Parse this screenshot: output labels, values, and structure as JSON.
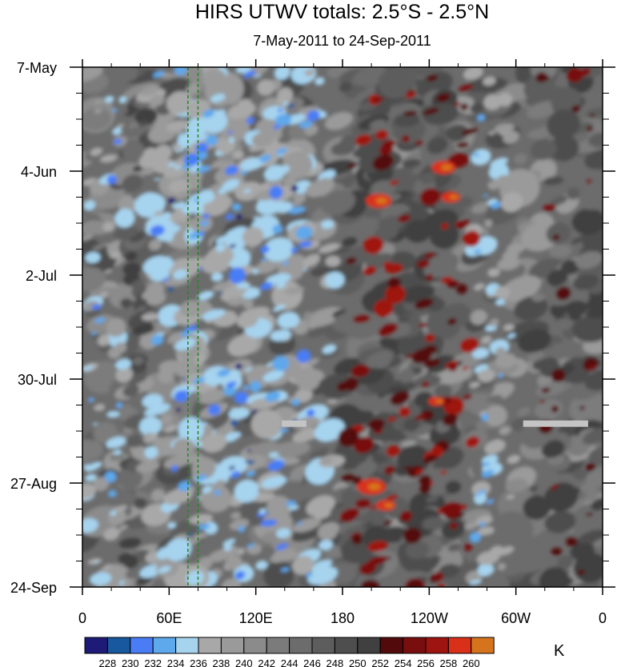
{
  "chart_data": {
    "type": "heatmap",
    "title": "HIRS UTWV totals: 2.5°S - 2.5°N",
    "subtitle": "7-May-2011 to 24-Sep-2011",
    "unit": "K",
    "x_ticks": [
      "0",
      "60E",
      "120E",
      "180",
      "120W",
      "60W",
      "0"
    ],
    "x_tick_lon": [
      0,
      60,
      120,
      180,
      240,
      300,
      360
    ],
    "y_ticks": [
      "7-May",
      "4-Jun",
      "2-Jul",
      "30-Jul",
      "27-Aug",
      "24-Sep"
    ],
    "y_tick_day": [
      0,
      28,
      56,
      84,
      112,
      140
    ],
    "xlim": [
      0,
      360
    ],
    "ylim_days": [
      0,
      140
    ],
    "colorbar_levels": [
      "228",
      "230",
      "232",
      "234",
      "236",
      "238",
      "240",
      "242",
      "244",
      "246",
      "248",
      "250",
      "252",
      "254",
      "256",
      "258",
      "260"
    ],
    "colorbar_colors": [
      "#1e1a78",
      "#17589e",
      "#4a7df5",
      "#5ea8ec",
      "#a6d3ee",
      "#a8a8a8",
      "#9a9a9a",
      "#8b8b8b",
      "#7b7b7b",
      "#6c6c6c",
      "#5d5d5d",
      "#4e4e4e",
      "#404040",
      "#520a0a",
      "#780e0e",
      "#9e1410",
      "#d9301a",
      "#d6741e"
    ],
    "reference_lines_lon": [
      73,
      80
    ],
    "missing_data_bars": [
      {
        "lon_start": 305,
        "lon_end": 350,
        "day": 96
      },
      {
        "lon_start": 138,
        "lon_end": 155,
        "day": 96
      }
    ]
  }
}
